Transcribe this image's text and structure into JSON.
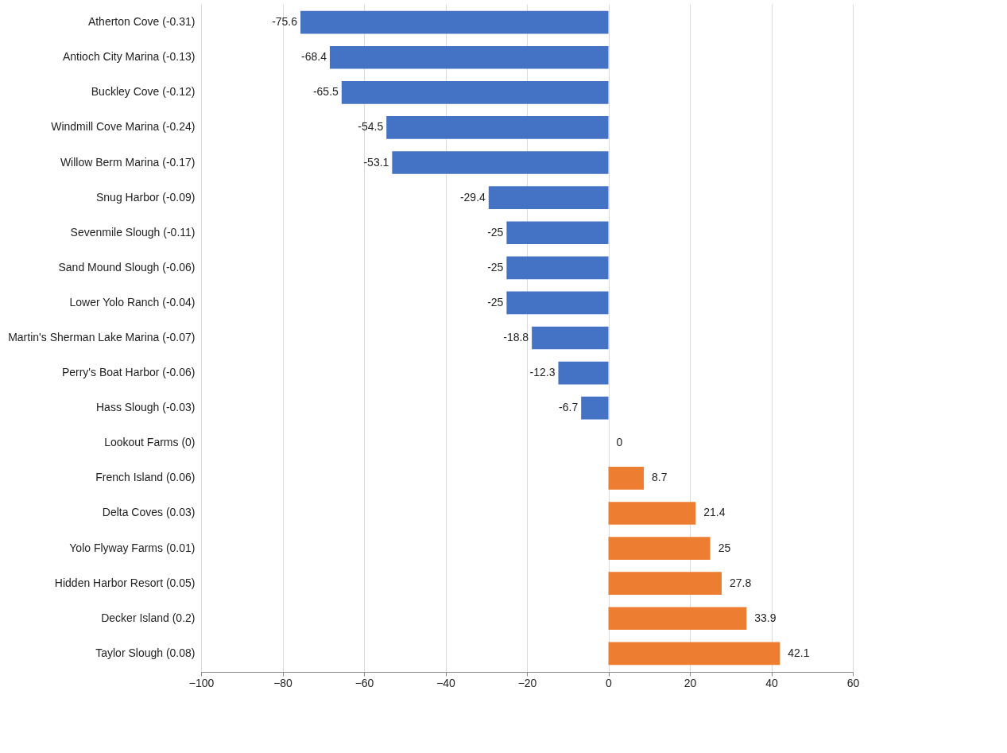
{
  "chart_data": {
    "type": "bar",
    "orientation": "horizontal",
    "categories": [
      "Atherton Cove  (-0.31)",
      "Antioch City Marina  (-0.13)",
      "Buckley Cove  (-0.12)",
      "Windmill Cove Marina  (-0.24)",
      "Willow Berm Marina  (-0.17)",
      "Snug Harbor  (-0.09)",
      "Sevenmile Slough  (-0.11)",
      "Sand Mound Slough  (-0.06)",
      "Lower Yolo Ranch  (-0.04)",
      "Martin's Sherman Lake Marina  (-0.07)",
      "Perry's Boat Harbor  (-0.06)",
      "Hass Slough  (-0.03)",
      "Lookout Farms  (0)",
      "French Island  (0.06)",
      "Delta Coves  (0.03)",
      "Yolo Flyway Farms  (0.01)",
      "Hidden Harbor Resort  (0.05)",
      "Decker Island  (0.2)",
      "Taylor Slough  (0.08)"
    ],
    "values": [
      -75.6,
      -68.4,
      -65.5,
      -54.5,
      -53.1,
      -29.4,
      -25,
      -25,
      -25,
      -18.8,
      -12.3,
      -6.7,
      0,
      8.7,
      21.4,
      25,
      27.8,
      33.9,
      42.1
    ],
    "colors": [
      "#4472c4",
      "#4472c4",
      "#4472c4",
      "#4472c4",
      "#4472c4",
      "#4472c4",
      "#4472c4",
      "#4472c4",
      "#4472c4",
      "#4472c4",
      "#4472c4",
      "#4472c4",
      "#ed7d31",
      "#ed7d31",
      "#ed7d31",
      "#ed7d31",
      "#ed7d31",
      "#ed7d31",
      "#ed7d31"
    ],
    "xlim": [
      -100,
      60
    ],
    "xticks": [
      -100,
      -80,
      -60,
      -40,
      -20,
      0,
      20,
      40,
      60
    ],
    "grid": "x",
    "data_labels": true
  }
}
